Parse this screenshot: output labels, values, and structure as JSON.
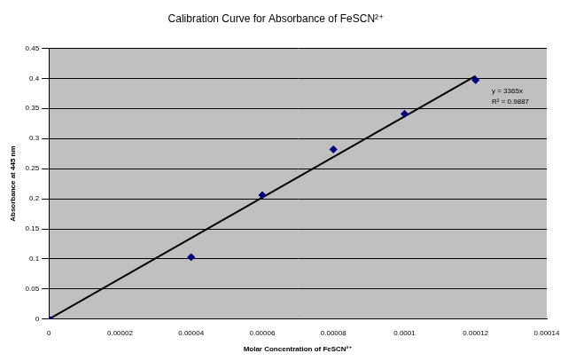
{
  "chart_data": {
    "type": "scatter",
    "title": "Calibration Curve for Absorbance of FeSCN²⁺",
    "x_label": "Molar Concentration of FeSCN²⁺",
    "y_label": "Absorbance at 445 nm",
    "annotations": [
      "y = 3365x",
      "R² = 0.9887"
    ],
    "series": [
      {
        "type": "scatter",
        "color": "#000080",
        "marker": "diamond",
        "x": [
          0,
          4e-05,
          6e-05,
          8e-05,
          0.0001,
          0.00012
        ],
        "values": [
          0,
          0.103,
          0.206,
          0.282,
          0.341,
          0.397
        ]
      },
      {
        "type": "line",
        "color": "#000000",
        "line_style": "solid",
        "x": [
          0,
          0.00012
        ],
        "values": [
          0,
          0.404
        ]
      }
    ],
    "xlim": [
      0,
      0.00014
    ],
    "xticks": [
      0,
      2e-05,
      4e-05,
      6e-05,
      8e-05,
      0.0001,
      0.00012,
      0.00014
    ],
    "ylim": [
      0,
      0.45
    ],
    "yticks": [
      0,
      0.05,
      0.1,
      0.15,
      0.2,
      0.25,
      0.3,
      0.35,
      0.4,
      0.45
    ],
    "grid": true
  }
}
